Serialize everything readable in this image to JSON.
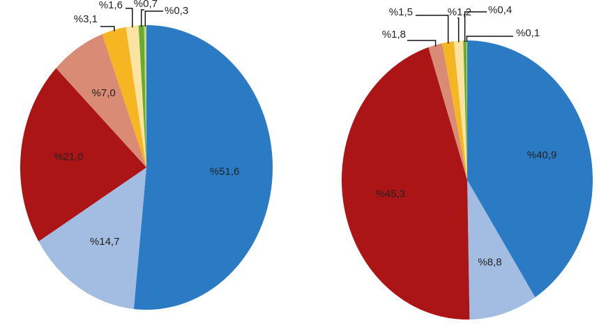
{
  "chart_data": [
    {
      "type": "pie",
      "values": [
        51.6,
        14.7,
        21.0,
        7.0,
        3.1,
        1.6,
        0.7,
        0.3
      ],
      "value_labels": [
        "%51,6",
        "%14,7",
        "%21,0",
        "%7,0",
        "%3,1",
        "%1,6",
        "%0,7",
        "%0,3"
      ],
      "colors": [
        "#2a7bc4",
        "#a3bde2",
        "#ab1516",
        "#d98b75",
        "#f6b622",
        "#fbe3a2",
        "#6aaa2e",
        "#b9d98a"
      ]
    },
    {
      "type": "pie",
      "values": [
        40.9,
        8.8,
        45.3,
        1.8,
        1.5,
        1.2,
        0.4,
        0.1
      ],
      "value_labels": [
        "%40,9",
        "%8,8",
        "%45,3",
        "%1,8",
        "%1,5",
        "%1,2",
        "%0,4",
        "%0,1"
      ],
      "colors": [
        "#2a7bc4",
        "#a3bde2",
        "#ab1516",
        "#d98b75",
        "#f6b622",
        "#fbe3a2",
        "#6aaa2e",
        "#b9d98a"
      ]
    }
  ]
}
